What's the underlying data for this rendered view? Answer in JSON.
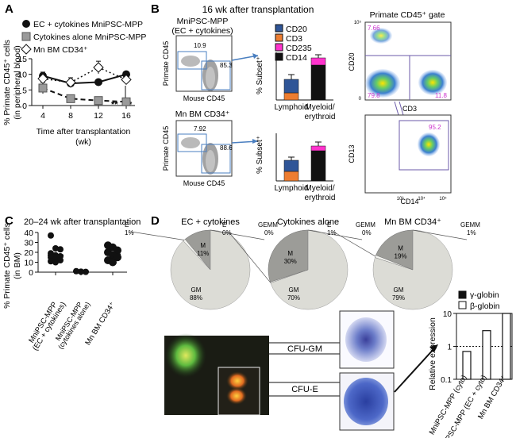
{
  "panels": {
    "A": "A",
    "B": "B",
    "C": "C",
    "D": "D"
  },
  "panelA": {
    "legend": [
      {
        "label": "EC + cytokines MniPSC-MPP",
        "marker": "circle"
      },
      {
        "label": "Cytokines alone MniPSC-MPP",
        "marker": "square"
      },
      {
        "label": "Mn BM CD34⁺",
        "marker": "diamond"
      }
    ],
    "ylabel1": "% Primate CD45⁺ cells",
    "ylabel2": "(in peripheral blood)",
    "xlabel1": "Time after transplantation",
    "xlabel2": "(wk)",
    "sig1": "**",
    "sig2": "*"
  },
  "panelB": {
    "title": "16 wk after transplantation",
    "flow1_title1": "MniPSC-MPP",
    "flow1_title2": "(EC + cytokines)",
    "flow2_title": "Mn BM CD34⁺",
    "flow_ylabel": "Primate CD45",
    "flow_xlabel": "Mouse CD45",
    "flow1_vals": [
      "10.9",
      "85.3"
    ],
    "flow2_vals": [
      "7.92",
      "88.6"
    ],
    "bar_ylabel": "% Subset⁺",
    "legend": [
      {
        "label": "CD20",
        "color": "#2f5597"
      },
      {
        "label": "CD3",
        "color": "#ed7d31"
      },
      {
        "label": "CD235",
        "color": "#ff33cc"
      },
      {
        "label": "CD14",
        "color": "#111111"
      }
    ],
    "gate_title": "Primate CD45⁺ gate",
    "gate1_vals": {
      "tl": "7.66",
      "bl": "79.8",
      "br": "11.8"
    },
    "gate1_axes": {
      "y": "CD20",
      "x": "CD3"
    },
    "gate2_val": "95.2",
    "gate2_axes": {
      "y": "CD13",
      "x": "CD14"
    },
    "flow_ticks": [
      "0",
      "10³",
      "10⁴",
      "10⁵"
    ]
  },
  "panelC": {
    "title": "20–24 wk after transplantation",
    "ylabel1": "% Primate CD45⁺ cells",
    "ylabel2": "(in BM)",
    "groups": [
      {
        "label1": "MniPSC-MPP",
        "label2": "(EC + cytokines)"
      },
      {
        "label1": "MniPSC-MPP",
        "label2": "(cytokines alone)"
      },
      {
        "label1": "Mn BM CD34⁺",
        "label2": ""
      }
    ]
  },
  "panelD": {
    "pies": [
      {
        "title": "EC + cytokines",
        "slices": [
          {
            "label": "E",
            "pct": "1%",
            "value": 1
          },
          {
            "label": "M",
            "pct": "11%",
            "value": 11
          },
          {
            "label": "GEMM",
            "pct": "0%",
            "value": 0
          },
          {
            "label": "GM",
            "pct": "88%",
            "value": 88
          }
        ]
      },
      {
        "title": "Cytokines alone",
        "slices": [
          {
            "label": "E",
            "pct": "0%",
            "value": 0
          },
          {
            "label": "M",
            "pct": "30%",
            "value": 30
          },
          {
            "label": "GEMM",
            "pct": "0%",
            "value": 0
          },
          {
            "label": "GM",
            "pct": "70%",
            "value": 70
          }
        ]
      },
      {
        "title": "Mn BM CD34⁺",
        "slices": [
          {
            "label": "E",
            "pct": "1%",
            "value": 1
          },
          {
            "label": "M",
            "pct": "19%",
            "value": 19
          },
          {
            "label": "GEMM",
            "pct": "1%",
            "value": 1
          },
          {
            "label": "GM",
            "pct": "79%",
            "value": 79
          }
        ]
      }
    ],
    "colony_labels": [
      "CFU-GM",
      "CFU-E"
    ],
    "globin_legend": [
      {
        "label": "γ-globin",
        "fill": "#111111"
      },
      {
        "label": "β-globin",
        "fill": "#ffffff"
      }
    ],
    "globin_ylabel": "Relative expression",
    "globin_ticks": [
      "0.1",
      "1",
      "10"
    ],
    "globin_cats": [
      "MniPSC-MPP (cyto)",
      "MniPSC-MPP (EC + cyto)",
      "Mn BM CD34⁺"
    ]
  },
  "chart_data": [
    {
      "type": "line",
      "title": "",
      "xlabel": "Time after transplantation (wk)",
      "ylabel": "% Primate CD45⁺ cells (in peripheral blood)",
      "x": [
        4,
        8,
        12,
        16
      ],
      "xticks": [
        "4",
        "8",
        "12",
        "16"
      ],
      "yticks": [
        "0",
        "5",
        "10",
        "15"
      ],
      "ylim": [
        0,
        15
      ],
      "series": [
        {
          "name": "EC + cytokines MniPSC-MPP",
          "values": [
            9.5,
            7.1,
            7.5,
            10.0
          ],
          "errors": [
            1.2,
            1.0,
            0.8,
            0.8
          ]
        },
        {
          "name": "Cytokines alone MniPSC-MPP",
          "values": [
            5.6,
            2.2,
            1.6,
            1.2
          ],
          "errors": [
            1.8,
            0.5,
            0.8,
            1.0
          ]
        },
        {
          "name": "Mn BM CD34⁺",
          "values": [
            8.6,
            7.4,
            12.2,
            8.3
          ],
          "errors": [
            1.2,
            1.5,
            2.0,
            1.3
          ]
        }
      ]
    },
    {
      "type": "bar",
      "stacked": true,
      "categories": [
        "Lymphoid",
        "Myeloid/ erythroid"
      ],
      "ylim": [
        0,
        60
      ],
      "series": [
        {
          "name": "CD3",
          "values": [
            9,
            0
          ]
        },
        {
          "name": "CD20",
          "values": [
            17,
            0
          ]
        },
        {
          "name": "CD14",
          "values": [
            0,
            44
          ]
        },
        {
          "name": "CD235",
          "values": [
            0,
            9
          ]
        }
      ],
      "errors": [
        6,
        4
      ]
    },
    {
      "type": "bar",
      "stacked": true,
      "categories": [
        "Lymphoid",
        "Myeloid/ erythroid"
      ],
      "ylim": [
        0,
        60
      ],
      "series": [
        {
          "name": "CD3",
          "values": [
            12,
            0
          ]
        },
        {
          "name": "CD20",
          "values": [
            14,
            0
          ]
        },
        {
          "name": "CD14",
          "values": [
            0,
            38
          ]
        },
        {
          "name": "CD235",
          "values": [
            0,
            6
          ]
        }
      ],
      "errors": [
        4,
        5
      ]
    },
    {
      "type": "scatter",
      "title": "20–24 wk after transplantation",
      "categories": [
        "MniPSC-MPP (EC + cytokines)",
        "MniPSC-MPP (cytokines alone)",
        "Mn BM CD34⁺"
      ],
      "ylim": [
        0,
        40
      ],
      "yticks": [
        "0",
        "10",
        "20",
        "30",
        "40"
      ],
      "points": [
        [
          37,
          24,
          23,
          19,
          17,
          16,
          15,
          13,
          12,
          11,
          10
        ],
        [
          1,
          0.5,
          0.3
        ],
        [
          27,
          25,
          22,
          20,
          17,
          15,
          12,
          10
        ]
      ],
      "means": [
        17,
        0.6,
        18
      ]
    },
    {
      "type": "bar",
      "title": "Globin expression",
      "categories": [
        "MniPSC-MPP (cyto)",
        "MniPSC-MPP (EC + cyto)",
        "Mn BM CD34⁺"
      ],
      "yscale": "log",
      "ylim": [
        0.1,
        10
      ],
      "series": [
        {
          "name": "β-globin",
          "values": [
            0.7,
            3,
            10
          ]
        }
      ],
      "reference_line": 1
    }
  ]
}
